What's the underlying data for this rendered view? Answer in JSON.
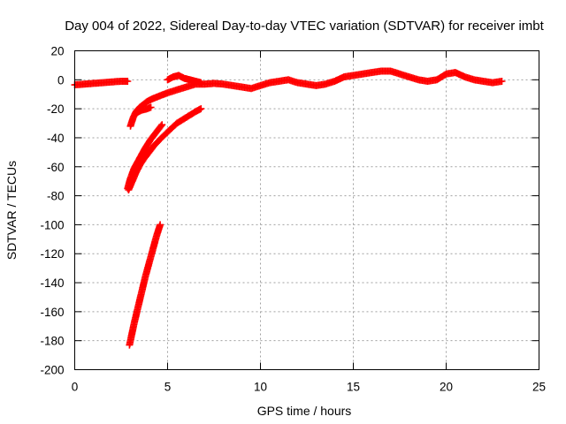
{
  "chart_data": {
    "type": "scatter",
    "title": "Day 004 of 2022, Sidereal Day-to-day VTEC variation (SDTVAR) for receiver imbt",
    "xlabel": "GPS time / hours",
    "ylabel": "SDTVAR / TECUs",
    "xlim": [
      0,
      25
    ],
    "ylim": [
      -200,
      20
    ],
    "xticks": [
      0,
      5,
      10,
      15,
      20,
      25
    ],
    "yticks": [
      -200,
      -180,
      -160,
      -140,
      -120,
      -100,
      -80,
      -60,
      -40,
      -20,
      0,
      20
    ],
    "grid": true,
    "legend": "none",
    "marker": "plus",
    "color": "#ff0000",
    "series": [
      {
        "x": [
          0.0,
          0.5,
          1.0,
          1.5,
          2.0,
          2.5,
          2.85
        ],
        "y": [
          -3.5,
          -3,
          -2.5,
          -2,
          -1.5,
          -1,
          -1
        ]
      },
      {
        "x": [
          3.0,
          3.15,
          3.3,
          3.5,
          3.7,
          3.9,
          4.2,
          4.6,
          5.0,
          5.5,
          6.0,
          6.5,
          7.0,
          7.5,
          8.0,
          8.5,
          9.0,
          9.5,
          10.0,
          10.5,
          11.0,
          11.5,
          12.0,
          12.5,
          13.0,
          13.5,
          14.0,
          14.5,
          15.0,
          15.5,
          16.0,
          16.5,
          17.0,
          17.5,
          18.0,
          18.5,
          19.0,
          19.5,
          20.0,
          20.5,
          21.0,
          21.5,
          22.0,
          22.5,
          23.0
        ],
        "y": [
          -32,
          -26,
          -22,
          -19,
          -17,
          -15,
          -13,
          -11,
          -9,
          -7,
          -5,
          -3,
          -3,
          -2.5,
          -3,
          -4,
          -5,
          -6,
          -4,
          -2,
          -1,
          0,
          -2,
          -3,
          -4,
          -3,
          -1,
          2,
          3,
          4,
          5,
          6,
          6,
          4,
          2,
          0,
          -1,
          0,
          4,
          5,
          2,
          0,
          -1,
          -2,
          -1
        ]
      },
      {
        "x": [
          3.3,
          3.6,
          3.9,
          4.1
        ],
        "y": [
          -23,
          -21,
          -20,
          -19
        ]
      },
      {
        "x": [
          5.0,
          5.3,
          5.6,
          5.9,
          6.2,
          6.5,
          6.8
        ],
        "y": [
          0,
          2,
          3,
          1,
          0,
          -1,
          -2
        ]
      },
      {
        "x": [
          2.9,
          3.1,
          3.3,
          3.5,
          3.7,
          4.0,
          4.3,
          4.6,
          5.0,
          5.5,
          6.0,
          6.5,
          6.8
        ],
        "y": [
          -76,
          -70,
          -64,
          -59,
          -55,
          -50,
          -45,
          -41,
          -36,
          -30,
          -26,
          -22,
          -20
        ]
      },
      {
        "x": [
          2.85,
          3.0,
          3.2,
          3.5,
          3.8,
          4.1,
          4.4,
          4.7
        ],
        "y": [
          -75,
          -68,
          -61,
          -54,
          -47,
          -41,
          -36,
          -31
        ]
      },
      {
        "x": [
          2.95,
          3.2,
          3.5,
          3.8,
          4.1,
          4.4,
          4.6
        ],
        "y": [
          -183,
          -168,
          -152,
          -136,
          -122,
          -108,
          -100
        ]
      }
    ]
  }
}
